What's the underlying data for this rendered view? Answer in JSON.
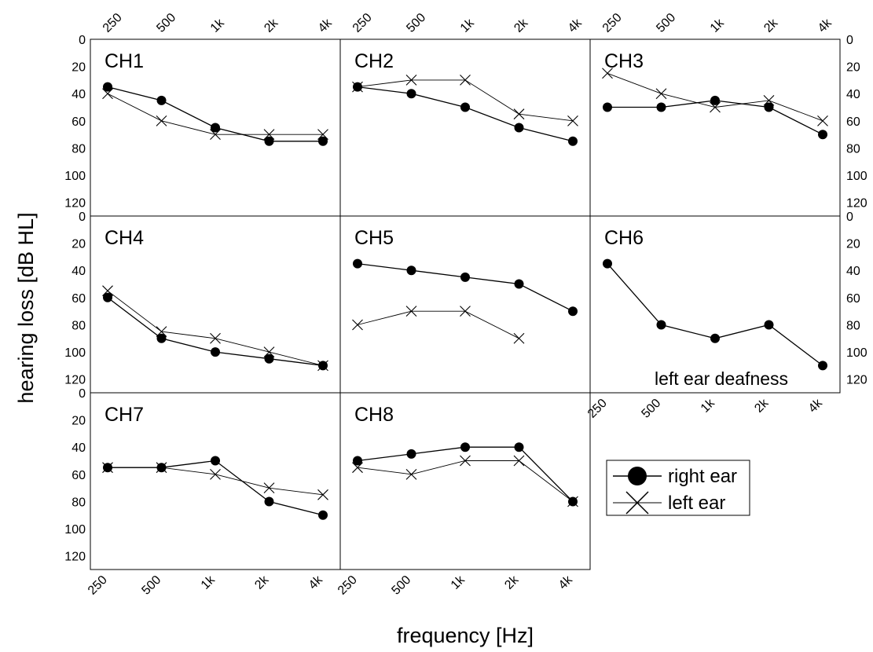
{
  "chart_data": {
    "type": "line",
    "xlabel": "frequency [Hz]",
    "ylabel": "hearing loss [dB HL]",
    "x_categories": [
      "250",
      "500",
      "1k",
      "2k",
      "4k"
    ],
    "y_ticks": [
      "0",
      "20",
      "40",
      "60",
      "80",
      "100",
      "120"
    ],
    "ylim": [
      0,
      130
    ],
    "y_inverted": true,
    "grid": false,
    "legend": {
      "position": "bottom-right",
      "entries": [
        {
          "label": "right ear",
          "marker": "filled-circle"
        },
        {
          "label": "left ear",
          "marker": "cross"
        }
      ]
    },
    "panels": [
      {
        "title": "CH1",
        "right_ear": [
          35,
          45,
          65,
          75,
          75
        ],
        "left_ear": [
          40,
          60,
          70,
          70,
          70
        ]
      },
      {
        "title": "CH2",
        "right_ear": [
          35,
          40,
          50,
          65,
          75
        ],
        "left_ear": [
          35,
          30,
          30,
          55,
          60
        ]
      },
      {
        "title": "CH3",
        "right_ear": [
          50,
          50,
          45,
          50,
          70
        ],
        "left_ear": [
          25,
          40,
          50,
          45,
          60
        ]
      },
      {
        "title": "CH4",
        "right_ear": [
          60,
          90,
          100,
          105,
          110
        ],
        "left_ear": [
          55,
          85,
          90,
          100,
          110
        ]
      },
      {
        "title": "CH5",
        "right_ear": [
          35,
          40,
          45,
          50,
          70
        ],
        "left_ear": [
          80,
          70,
          70,
          90,
          null
        ]
      },
      {
        "title": "CH6",
        "right_ear": [
          35,
          80,
          90,
          80,
          110
        ],
        "left_ear": [
          null,
          null,
          null,
          null,
          null
        ],
        "note": "left ear deafness"
      },
      {
        "title": "CH7",
        "right_ear": [
          55,
          55,
          50,
          80,
          90
        ],
        "left_ear": [
          55,
          55,
          60,
          70,
          75
        ]
      },
      {
        "title": "CH8",
        "right_ear": [
          50,
          45,
          40,
          40,
          80
        ],
        "left_ear": [
          55,
          60,
          50,
          50,
          80
        ]
      }
    ]
  }
}
